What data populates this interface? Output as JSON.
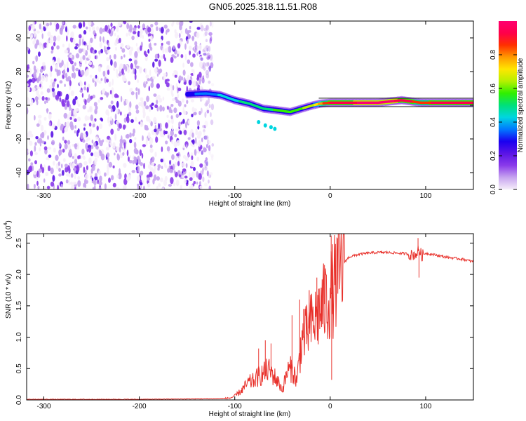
{
  "title": "GN05.2025.318.11.51.R08",
  "chart_data": [
    {
      "type": "heatmap",
      "title": "GN05.2025.318.11.51.R08",
      "xlabel": "Height of straight line (km)",
      "ylabel": "Frequency (Hz)",
      "xlim": [
        -318,
        150
      ],
      "ylim": [
        -50,
        50
      ],
      "xticks": [
        -300,
        -200,
        -100,
        0,
        100
      ],
      "xtick_labels": [
        "-300",
        "-200",
        "-100",
        "0",
        "100"
      ],
      "yticks": [
        40,
        20,
        0,
        -20,
        -40
      ],
      "ytick_labels": [
        "40",
        "20",
        "0",
        "-20",
        "-40"
      ],
      "noise_region_x": [
        -318,
        -123
      ],
      "ridge": {
        "x": [
          -150,
          -130,
          -115,
          -100,
          -85,
          -70,
          -55,
          -42,
          -30,
          -18,
          -10,
          0,
          20,
          50,
          75,
          95,
          120,
          150
        ],
        "freq": [
          6.5,
          7,
          6,
          3,
          1,
          -2,
          -3,
          -4,
          -2,
          0,
          1,
          1.5,
          1.5,
          1.5,
          3,
          1.5,
          1.5,
          1.5
        ],
        "amplitude": [
          0.3,
          0.35,
          0.4,
          0.45,
          0.5,
          0.5,
          0.55,
          0.6,
          0.6,
          0.65,
          0.8,
          0.9,
          0.95,
          1.0,
          0.95,
          0.85,
          0.95,
          0.9
        ]
      },
      "colorbar": {
        "label": "Normalized spectral amplitude",
        "range": [
          0,
          1
        ],
        "ticks": [
          0.0,
          0.2,
          0.4,
          0.6,
          0.8
        ],
        "tick_labels": [
          "0.0",
          "0.2",
          "0.4",
          "0.6",
          "0.8"
        ],
        "colors": [
          "#f6eefa",
          "#c7a4ef",
          "#8a3bea",
          "#5a14e6",
          "#1a00f0",
          "#0078ff",
          "#00d6e0",
          "#00e07a",
          "#30f000",
          "#b6f000",
          "#ffe600",
          "#ff9a00",
          "#ff3000",
          "#ff004a",
          "#ff0070"
        ]
      }
    },
    {
      "type": "line",
      "xlabel": "Height of straight line (km)",
      "ylabel": "SNR (10 * v/v)",
      "exponent_label": "(x10",
      "exponent": "4",
      "exponent_close": ")",
      "xlim": [
        -318,
        150
      ],
      "ylim": [
        0,
        2.65
      ],
      "xticks": [
        -300,
        -200,
        -100,
        0,
        100
      ],
      "xtick_labels": [
        "-300",
        "-200",
        "-100",
        "0",
        "100"
      ],
      "yticks": [
        0.0,
        0.5,
        1.0,
        1.5,
        2.0,
        2.5
      ],
      "ytick_labels": [
        "0.0",
        "0.5",
        "1.0",
        "1.5",
        "2.0",
        "2.5"
      ],
      "color": "#e8302a",
      "series": [
        {
          "name": "SNR",
          "x": [
            -318,
            -200,
            -120,
            -105,
            -100,
            -95,
            -90,
            -85,
            -80,
            -75,
            -70,
            -65,
            -60,
            -55,
            -50,
            -45,
            -40,
            -35,
            -30,
            -25,
            -20,
            -15,
            -10,
            -5,
            0,
            5,
            10,
            15,
            20,
            25,
            30,
            40,
            50,
            60,
            70,
            80,
            85,
            90,
            93,
            96,
            100,
            110,
            120,
            130,
            140,
            150
          ],
          "y": [
            0.01,
            0.01,
            0.02,
            0.03,
            0.06,
            0.12,
            0.2,
            0.28,
            0.3,
            0.38,
            0.42,
            0.48,
            0.4,
            0.3,
            0.16,
            0.45,
            0.5,
            0.3,
            0.95,
            1.05,
            1.2,
            1.3,
            1.45,
            1.55,
            1.65,
            1.85,
            2.05,
            2.2,
            2.28,
            2.3,
            2.32,
            2.34,
            2.35,
            2.35,
            2.34,
            2.33,
            2.31,
            2.32,
            2.4,
            2.3,
            2.34,
            2.31,
            2.28,
            2.26,
            2.24,
            2.2
          ],
          "spikes": [
            {
              "x": -75,
              "y": 0.82
            },
            {
              "x": -68,
              "y": 0.95
            },
            {
              "x": -62,
              "y": 0.9
            },
            {
              "x": -40,
              "y": 1.35
            },
            {
              "x": -32,
              "y": 1.6
            },
            {
              "x": -28,
              "y": 1.45
            },
            {
              "x": -22,
              "y": 1.75
            },
            {
              "x": -14,
              "y": 1.95
            },
            {
              "x": -6,
              "y": 2.15
            },
            {
              "x": 1,
              "y": 2.62
            },
            {
              "x": 1.5,
              "y": 0.32
            },
            {
              "x": 92,
              "y": 2.58
            },
            {
              "x": 93,
              "y": 1.95
            }
          ]
        }
      ]
    }
  ]
}
